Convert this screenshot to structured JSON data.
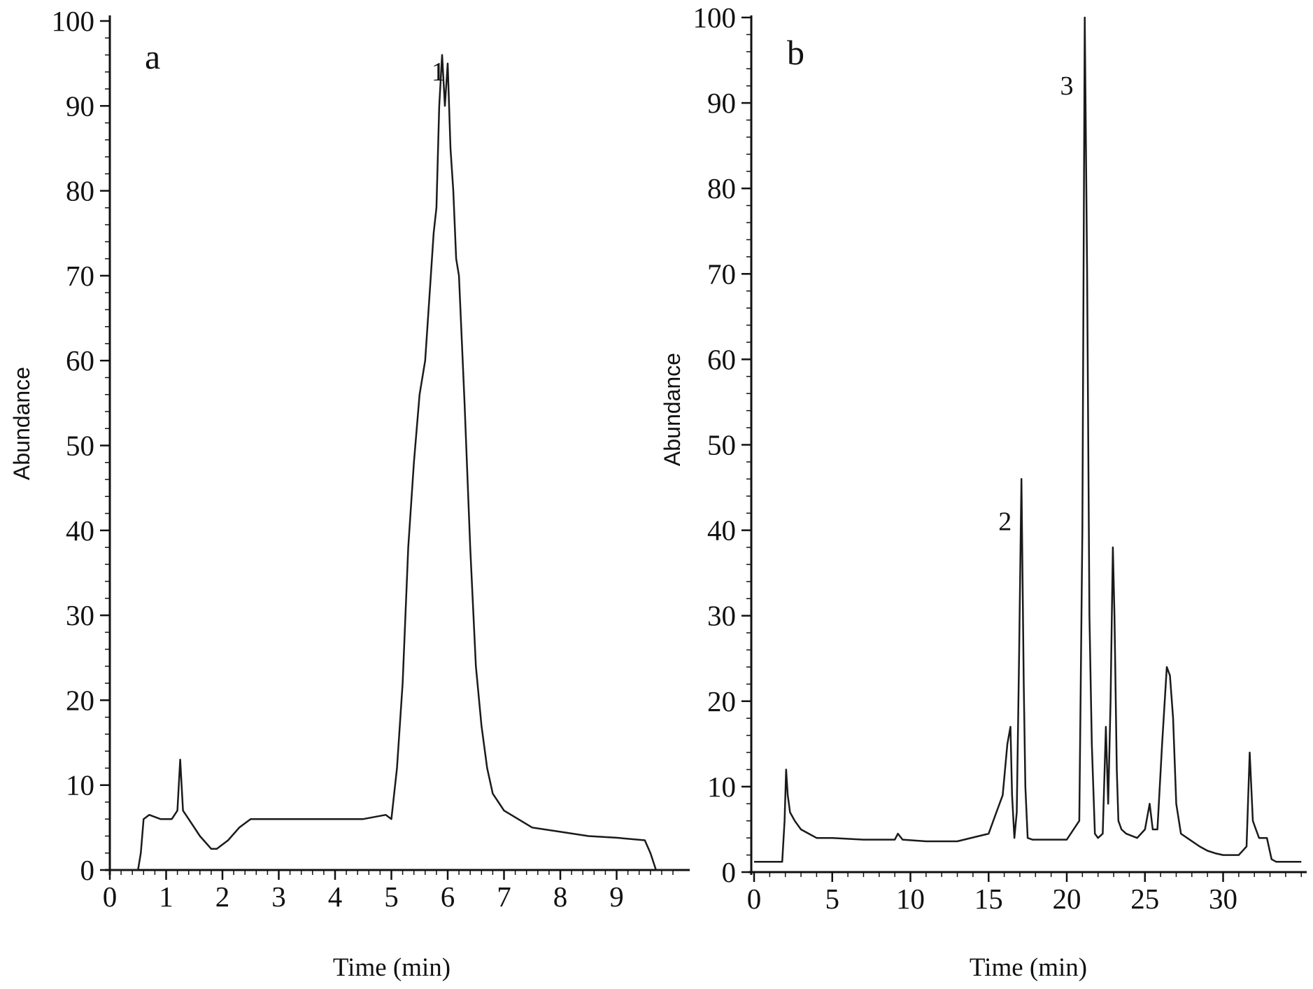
{
  "chart_data": [
    {
      "type": "line",
      "panel_label": "a",
      "xlabel": "Time (min)",
      "ylabel": "Abundance",
      "xlim": [
        0,
        10
      ],
      "ylim": [
        0,
        100
      ],
      "x_ticks": [
        "0",
        "1",
        "2",
        "3",
        "4",
        "5",
        "6",
        "7",
        "8",
        "9"
      ],
      "y_ticks": [
        "0",
        "10",
        "20",
        "30",
        "40",
        "50",
        "60",
        "70",
        "80",
        "90",
        "100"
      ],
      "grid": false,
      "line_color": "#1a1a1a",
      "series": [
        {
          "x": [
            0.0,
            0.5,
            0.55,
            0.6,
            0.7,
            0.9,
            1.1,
            1.2,
            1.25,
            1.3,
            1.4,
            1.6,
            1.8,
            1.9,
            2.1,
            2.3,
            2.5,
            3.0,
            3.5,
            4.0,
            4.5,
            4.9,
            5.0,
            5.1,
            5.2,
            5.3,
            5.4,
            5.5,
            5.6,
            5.7,
            5.75,
            5.8,
            5.85,
            5.9,
            5.95,
            6.0,
            6.05,
            6.1,
            6.15,
            6.2,
            6.3,
            6.4,
            6.5,
            6.6,
            6.7,
            6.8,
            6.9,
            7.0,
            7.5,
            8.0,
            8.5,
            9.0,
            9.5,
            9.6,
            9.7,
            9.8,
            10.0
          ],
          "y": [
            0,
            0,
            2,
            6,
            6.5,
            6,
            6,
            7,
            13,
            7,
            6,
            4,
            2.5,
            2.5,
            3.5,
            5,
            6,
            6,
            6,
            6,
            6,
            6.5,
            6,
            12,
            22,
            38,
            48,
            56,
            60,
            70,
            75,
            78,
            90,
            96,
            90,
            95,
            85,
            80,
            72,
            70,
            55,
            38,
            24,
            17,
            12,
            9,
            8,
            7,
            5,
            4.5,
            4,
            3.8,
            3.5,
            2,
            0,
            0,
            0
          ]
        }
      ],
      "annotations": [
        {
          "text": "1",
          "x": 5.83,
          "y": 93
        }
      ]
    },
    {
      "type": "line",
      "panel_label": "b",
      "xlabel": "Time (min)",
      "ylabel": "Abundance",
      "xlim": [
        0,
        35
      ],
      "ylim": [
        0,
        100
      ],
      "x_ticks": [
        "0",
        "5",
        "10",
        "15",
        "20",
        "25",
        "30"
      ],
      "y_ticks": [
        "0",
        "10",
        "20",
        "30",
        "40",
        "50",
        "60",
        "70",
        "80",
        "90",
        "100"
      ],
      "grid": false,
      "line_color": "#1a1a1a",
      "series": [
        {
          "x": [
            0.0,
            1.8,
            1.95,
            2.05,
            2.15,
            2.3,
            2.6,
            3.0,
            3.5,
            4.0,
            5.0,
            7.0,
            9.0,
            9.2,
            9.5,
            11.0,
            13.0,
            15.0,
            15.5,
            15.9,
            16.2,
            16.4,
            16.5,
            16.65,
            16.8,
            16.95,
            17.1,
            17.25,
            17.35,
            17.5,
            17.8,
            18.5,
            20.0,
            20.8,
            21.0,
            21.15,
            21.3,
            21.45,
            21.6,
            21.8,
            22.0,
            22.3,
            22.5,
            22.65,
            22.8,
            22.95,
            23.05,
            23.2,
            23.3,
            23.5,
            23.8,
            24.5,
            25.0,
            25.3,
            25.5,
            25.8,
            26.1,
            26.4,
            26.6,
            26.8,
            27.0,
            27.3,
            27.7,
            28.5,
            29.0,
            29.5,
            30.0,
            30.5,
            31.0,
            31.5,
            31.7,
            31.9,
            32.1,
            32.3,
            32.8,
            33.1,
            33.4,
            34.0,
            35.0
          ],
          "y": [
            1.2,
            1.2,
            6,
            12,
            9,
            7,
            6,
            5,
            4.5,
            4,
            4,
            3.8,
            3.8,
            4.5,
            3.8,
            3.6,
            3.6,
            4.5,
            7,
            9,
            15,
            17,
            9,
            4,
            7,
            25,
            46,
            22,
            10,
            4,
            3.8,
            3.8,
            3.8,
            6,
            40,
            100,
            70,
            30,
            15,
            4.5,
            4,
            4.5,
            17,
            8,
            20,
            38,
            30,
            12,
            6,
            5,
            4.5,
            4,
            5,
            8,
            5,
            5,
            15,
            24,
            23,
            18,
            8,
            4.5,
            4,
            3,
            2.5,
            2.2,
            2,
            2,
            2,
            3,
            14,
            6,
            5,
            4,
            4,
            1.5,
            1.2,
            1.2,
            1.2
          ]
        }
      ],
      "annotations": [
        {
          "text": "2",
          "x": 16.05,
          "y": 40
        },
        {
          "text": "3",
          "x": 20.0,
          "y": 91
        }
      ]
    }
  ]
}
